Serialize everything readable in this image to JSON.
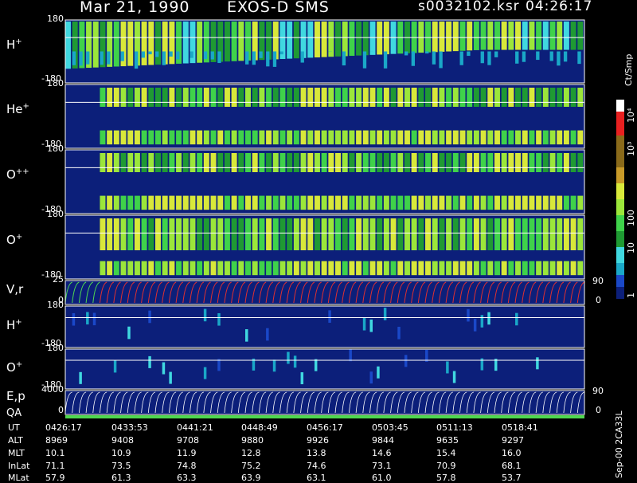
{
  "header": {
    "date": "Mar 21, 1990",
    "instrument": "EXOS-D SMS",
    "file": "s0032102.ksr",
    "time": "04:26:17"
  },
  "footer_note": "Sep-00 2CA33L",
  "colorbar": {
    "unit": "Ct/Smp",
    "ticks": [
      "10⁴",
      "10³",
      "100",
      "10",
      "1"
    ]
  },
  "colors": {
    "background": "#000000",
    "fill": "#0c1f7a",
    "scale": [
      "#0c1f7a",
      "#1a48c8",
      "#1aa8c8",
      "#40d8e0",
      "#1f9a33",
      "#3fd24a",
      "#9be63a",
      "#d8e83a",
      "#c89a28",
      "#8a6a1a",
      "#e82020",
      "#ffffff"
    ]
  },
  "chart_data": {
    "type": "heatmap",
    "panels": [
      {
        "label": "H",
        "sup": "+",
        "ylim": [
          -180,
          180
        ],
        "yticks": [
          "180",
          "-180"
        ]
      },
      {
        "label": "He",
        "sup": "+",
        "ylim": [
          -180,
          180
        ],
        "yticks": [
          "180",
          "-180"
        ]
      },
      {
        "label": "O",
        "sup": "++",
        "ylim": [
          -180,
          180
        ],
        "yticks": [
          "180",
          "-180"
        ]
      },
      {
        "label": "O",
        "sup": "+",
        "ylim": [
          -180,
          180
        ],
        "yticks": [
          "180",
          "-180"
        ]
      },
      {
        "label": "V,r",
        "sup": "",
        "ylim": [
          0,
          25
        ],
        "yticks": [
          "25",
          "0"
        ],
        "right_ticks": [
          "90",
          "0"
        ]
      },
      {
        "label": "H",
        "sup": "+",
        "ylim": [
          -180,
          180
        ],
        "yticks": [
          "180",
          "-180"
        ]
      },
      {
        "label": "O",
        "sup": "+",
        "ylim": [
          -180,
          180
        ],
        "yticks": [
          "180",
          "-180"
        ]
      },
      {
        "label": "E,p",
        "sup": "",
        "ylim": [
          0,
          4000
        ],
        "yticks": [
          "4000",
          "0"
        ],
        "right_ticks": [
          "90",
          "0"
        ]
      }
    ],
    "qa_label": "QA",
    "table": {
      "rows": [
        {
          "name": "UT",
          "values": [
            "0426:17",
            "0433:53",
            "0441:21",
            "0448:49",
            "0456:17",
            "0503:45",
            "0511:13",
            "0518:41"
          ]
        },
        {
          "name": "ALT",
          "values": [
            "8969",
            "9408",
            "9708",
            "9880",
            "9926",
            "9844",
            "9635",
            "9297"
          ]
        },
        {
          "name": "MLT",
          "values": [
            "10.1",
            "10.9",
            "11.9",
            "12.8",
            "13.8",
            "14.6",
            "15.4",
            "16.0"
          ]
        },
        {
          "name": "InLat",
          "values": [
            "71.1",
            "73.5",
            "74.8",
            "75.2",
            "74.6",
            "73.1",
            "70.9",
            "68.1"
          ]
        },
        {
          "name": "MLat",
          "values": [
            "57.9",
            "61.3",
            "63.3",
            "63.9",
            "63.1",
            "61.0",
            "57.8",
            "53.7"
          ]
        }
      ]
    }
  }
}
